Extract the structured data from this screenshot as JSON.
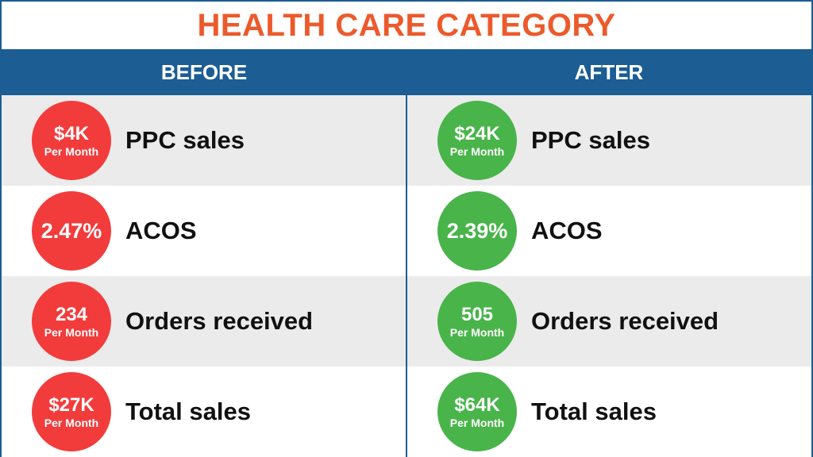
{
  "title": "HEALTH CARE CATEGORY",
  "colors": {
    "accent_title": "#ec5a2c",
    "header_bg": "#1c5d94",
    "before_circle": "#f23c3c",
    "after_circle": "#49b44a"
  },
  "before": {
    "heading": "BEFORE",
    "rows": [
      {
        "value": "$4K",
        "sub": "Per Month",
        "label": "PPC sales"
      },
      {
        "value": "2.47%",
        "sub": "",
        "label": "ACOS"
      },
      {
        "value": "234",
        "sub": "Per Month",
        "label": "Orders received"
      },
      {
        "value": "$27K",
        "sub": "Per Month",
        "label": "Total sales"
      }
    ]
  },
  "after": {
    "heading": "AFTER",
    "rows": [
      {
        "value": "$24K",
        "sub": "Per Month",
        "label": "PPC sales"
      },
      {
        "value": "2.39%",
        "sub": "",
        "label": "ACOS"
      },
      {
        "value": "505",
        "sub": "Per Month",
        "label": "Orders received"
      },
      {
        "value": "$64K",
        "sub": "Per Month",
        "label": "Total sales"
      }
    ]
  }
}
